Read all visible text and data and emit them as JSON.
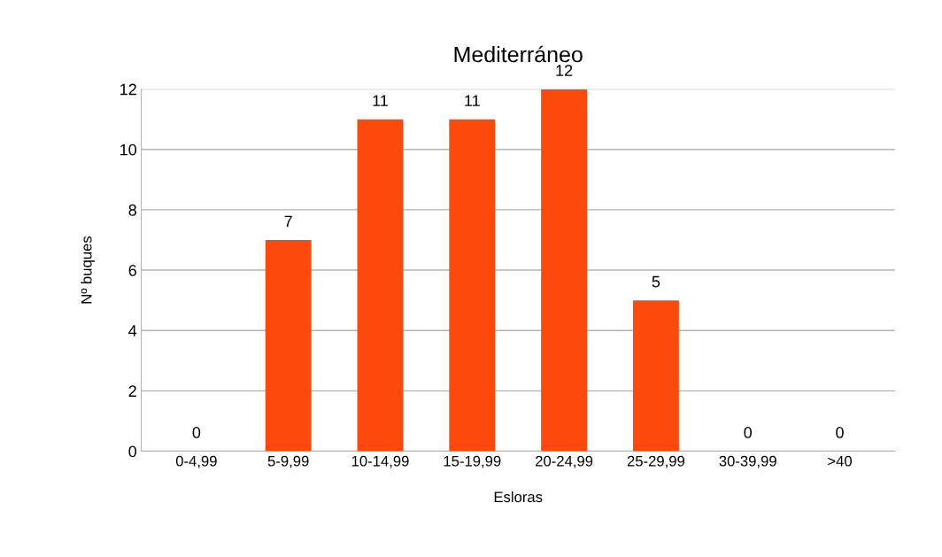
{
  "chart_data": {
    "type": "bar",
    "title": "Mediterráneo",
    "xlabel": "Esloras",
    "ylabel": "Nº buques",
    "categories": [
      "0-4,99",
      "5-9,99",
      "10-14,99",
      "15-19,99",
      "20-24,99",
      "25-29,99",
      "30-39,99",
      ">40"
    ],
    "values": [
      0,
      7,
      11,
      11,
      12,
      5,
      0,
      0
    ],
    "color": "#fc4a0c",
    "ylim": [
      0,
      12
    ],
    "yticks": [
      0,
      2,
      4,
      6,
      8,
      10,
      12
    ],
    "grid": "y",
    "data_labels": true
  }
}
